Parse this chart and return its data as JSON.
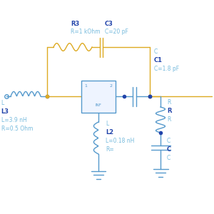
{
  "bg_color": "#ffffff",
  "blue": "#5599cc",
  "orange": "#ddaa22",
  "dblue": "#2244aa",
  "lblue": "#77bbdd",
  "figsize": [
    3.0,
    3.0
  ],
  "dpi": 100,
  "xlim": [
    0,
    10.0
  ],
  "ylim": [
    0,
    10.0
  ]
}
